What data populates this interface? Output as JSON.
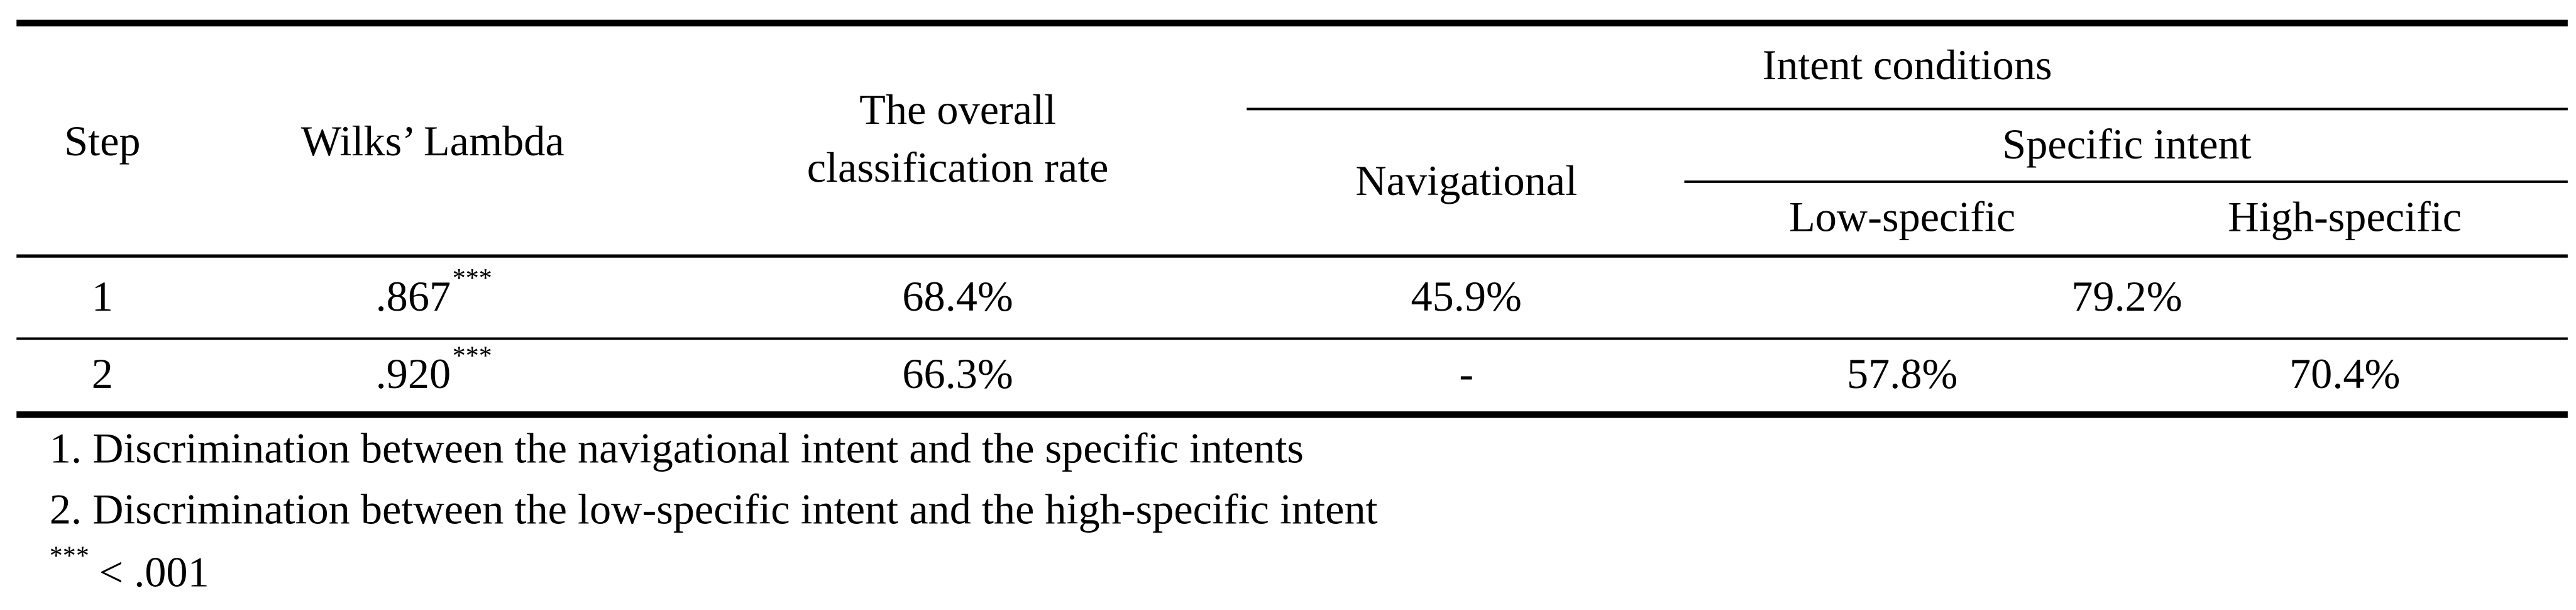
{
  "table": {
    "header": {
      "step": "Step",
      "wilks": "Wilks’ Lambda",
      "overall": [
        "The overall",
        "classification rate"
      ],
      "intent_conditions": "Intent conditions",
      "navigational": "Navigational",
      "specific_intent": "Specific intent",
      "low_specific": "Low-specific",
      "high_specific": "High-specific"
    },
    "rows": [
      {
        "step": "1",
        "wilks": ".867",
        "sig": "***",
        "overall": "68.4%",
        "navigational": "45.9%",
        "specific": "79.2%"
      },
      {
        "step": "2",
        "wilks": ".920",
        "sig": "***",
        "overall": "66.3%",
        "navigational": "-",
        "low_specific": "57.8%",
        "high_specific": "70.4%"
      }
    ]
  },
  "notes": [
    "1. Discrimination between the navigational intent and the specific intents",
    "2. Discrimination between the low-specific intent and the high-specific intent",
    {
      "symbol": "***",
      "text": "< .001"
    }
  ]
}
